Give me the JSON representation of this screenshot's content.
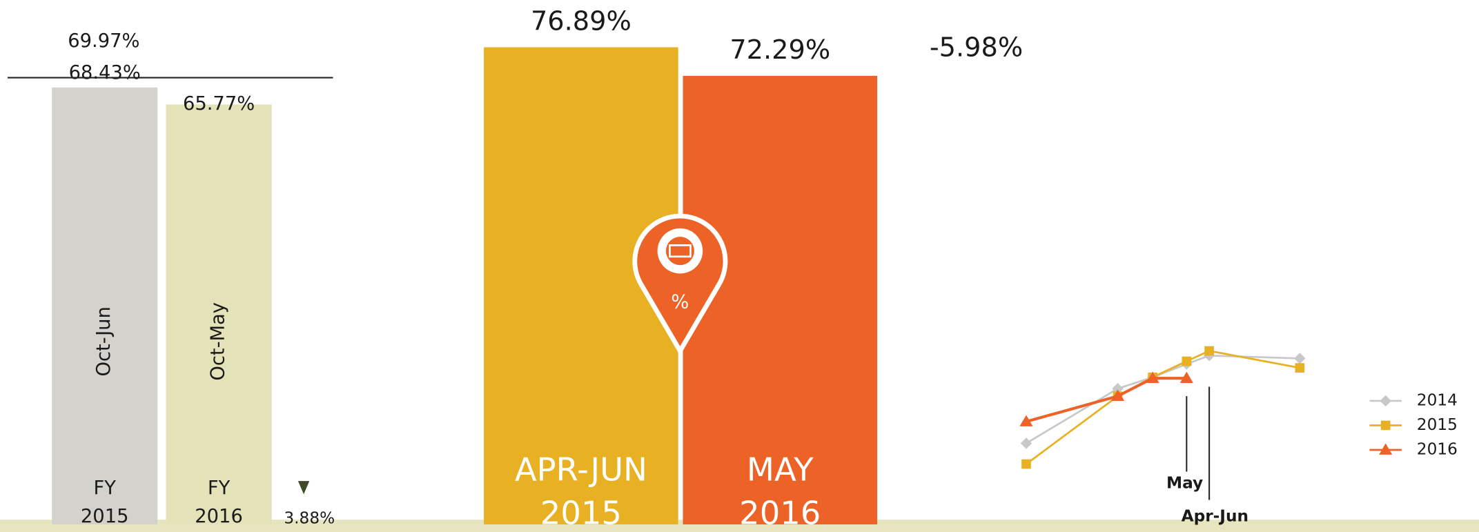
{
  "chart_data": [
    {
      "type": "bar",
      "categories": [
        "FY 2015",
        "FY 2016"
      ],
      "periods": [
        "Oct-Jun",
        "Oct-May"
      ],
      "values": [
        68.43,
        65.77
      ],
      "value_labels": [
        "68.43%",
        "65.77%"
      ],
      "colors": [
        "#d3d2cc",
        "#e3e2b8"
      ],
      "target": {
        "value": 69.97,
        "label": "69.97%"
      },
      "change": {
        "value": -3.88,
        "label": "3.88%"
      }
    },
    {
      "type": "bar",
      "categories": [
        "APR-JUN 2015",
        "MAY 2016"
      ],
      "values": [
        76.89,
        72.29
      ],
      "value_labels": [
        "76.89%",
        "72.29%"
      ],
      "colors": [
        "#e8b123",
        "#ec6227"
      ],
      "change": {
        "value": -5.98,
        "label": "-5.98%"
      },
      "icon_label": "%"
    },
    {
      "type": "line",
      "categories": [
        null,
        null,
        null,
        "May",
        "Apr-Jun",
        null
      ],
      "legend": "right",
      "series": [
        {
          "name": "2014",
          "color": "#c8c8c8",
          "marker": "diamond",
          "values": [
            68.2,
            74.0,
            75.2,
            76.6,
            77.5,
            77.2
          ]
        },
        {
          "name": "2015",
          "color": "#e8b123",
          "marker": "square",
          "values": [
            66.0,
            73.2,
            75.2,
            76.9,
            78.0,
            76.2
          ]
        },
        {
          "name": "2016",
          "color": "#ec6227",
          "marker": "triangle",
          "values": [
            70.5,
            73.2,
            75.1,
            75.1,
            null,
            null
          ]
        }
      ]
    }
  ]
}
